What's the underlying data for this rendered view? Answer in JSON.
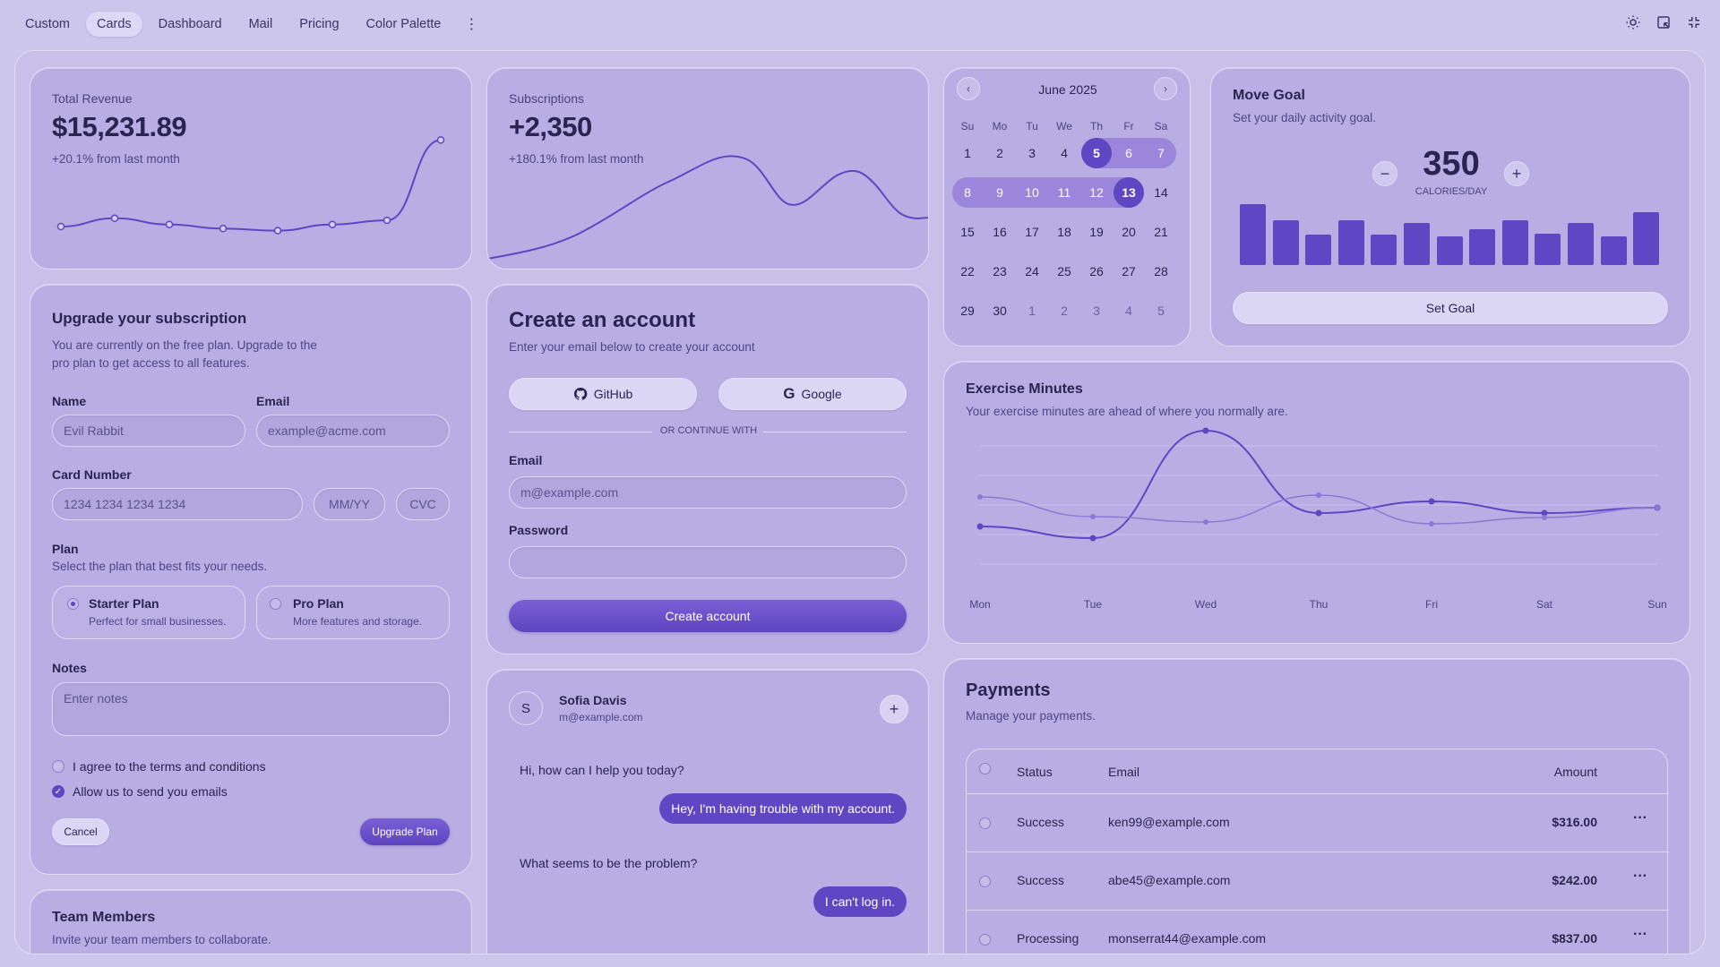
{
  "nav": {
    "items": [
      "Custom",
      "Cards",
      "Dashboard",
      "Mail",
      "Pricing",
      "Color Palette"
    ],
    "active_index": 1
  },
  "revenue": {
    "label": "Total Revenue",
    "value": "$15,231.89",
    "delta": "+20.1% from last month",
    "series": [
      10,
      14,
      11,
      9,
      8,
      11,
      13,
      52
    ]
  },
  "subscriptions": {
    "label": "Subscriptions",
    "value": "+2,350",
    "delta": "+180.1% from last month"
  },
  "calendar": {
    "month": "June 2025",
    "weekdays": [
      "Su",
      "Mo",
      "Tu",
      "We",
      "Th",
      "Fr",
      "Sa"
    ],
    "weeks": [
      [
        "1",
        "2",
        "3",
        "4",
        "5",
        "6",
        "7"
      ],
      [
        "8",
        "9",
        "10",
        "11",
        "12",
        "13",
        "14"
      ],
      [
        "15",
        "16",
        "17",
        "18",
        "19",
        "20",
        "21"
      ],
      [
        "22",
        "23",
        "24",
        "25",
        "26",
        "27",
        "28"
      ],
      [
        "29",
        "30",
        "1",
        "2",
        "3",
        "4",
        "5"
      ]
    ],
    "range_start": "5",
    "range_end": "13"
  },
  "move_goal": {
    "title": "Move Goal",
    "subtitle": "Set your daily activity goal.",
    "value": "350",
    "unit": "CALORIES/DAY",
    "bars": [
      95,
      70,
      47,
      70,
      47,
      65,
      45,
      55,
      70,
      48,
      65,
      45,
      82
    ],
    "button": "Set Goal"
  },
  "exercise": {
    "title": "Exercise Minutes",
    "subtitle": "Your exercise minutes are ahead of where you normally are.",
    "days": [
      "Mon",
      "Tue",
      "Wed",
      "Thu",
      "Fri",
      "Sat",
      "Sun"
    ],
    "series": [
      {
        "name": "primary",
        "values": [
          55,
          42,
          162,
          70,
          83,
          70,
          76
        ]
      },
      {
        "name": "secondary",
        "values": [
          88,
          66,
          60,
          90,
          58,
          65,
          76
        ]
      }
    ]
  },
  "upgrade": {
    "title": "Upgrade your subscription",
    "subtitle": "You are currently on the free plan. Upgrade to the pro plan to get access to all features.",
    "name_label": "Name",
    "name_value": "Evil Rabbit",
    "email_label": "Email",
    "email_placeholder": "example@acme.com",
    "card_label": "Card Number",
    "card_placeholder": "1234 1234 1234 1234",
    "mmyy_placeholder": "MM/YY",
    "cvc_placeholder": "CVC",
    "plan_label": "Plan",
    "plan_hint": "Select the plan that best fits your needs.",
    "plans": [
      {
        "name": "Starter Plan",
        "desc": "Perfect for small businesses."
      },
      {
        "name": "Pro Plan",
        "desc": "More features and storage."
      }
    ],
    "notes_label": "Notes",
    "notes_placeholder": "Enter notes",
    "terms": "I agree to the terms and conditions",
    "emails": "Allow us to send you emails",
    "cancel": "Cancel",
    "submit": "Upgrade Plan"
  },
  "create_account": {
    "title": "Create an account",
    "subtitle": "Enter your email below to create your account",
    "github": "GitHub",
    "google": "Google",
    "divider": "OR CONTINUE WITH",
    "email_label": "Email",
    "email_placeholder": "m@example.com",
    "password_label": "Password",
    "submit": "Create account"
  },
  "chat": {
    "initial": "S",
    "name": "Sofia Davis",
    "email": "m@example.com",
    "messages": [
      {
        "from": "them",
        "text": "Hi, how can I help you today?"
      },
      {
        "from": "me",
        "text": "Hey, I'm having trouble with my account."
      },
      {
        "from": "them",
        "text": "What seems to be the problem?"
      },
      {
        "from": "me",
        "text": "I can't log in."
      }
    ]
  },
  "team": {
    "title": "Team Members",
    "subtitle": "Invite your team members to collaborate."
  },
  "payments": {
    "title": "Payments",
    "subtitle": "Manage your payments.",
    "headers": {
      "status": "Status",
      "email": "Email",
      "amount": "Amount"
    },
    "rows": [
      {
        "status": "Success",
        "email": "ken99@example.com",
        "amount": "$316.00"
      },
      {
        "status": "Success",
        "email": "abe45@example.com",
        "amount": "$242.00"
      },
      {
        "status": "Processing",
        "email": "monserrat44@example.com",
        "amount": "$837.00"
      }
    ]
  },
  "colors": {
    "accent": "#5f46c2",
    "range": "#9b86dc",
    "background": "#cdc6ec"
  }
}
